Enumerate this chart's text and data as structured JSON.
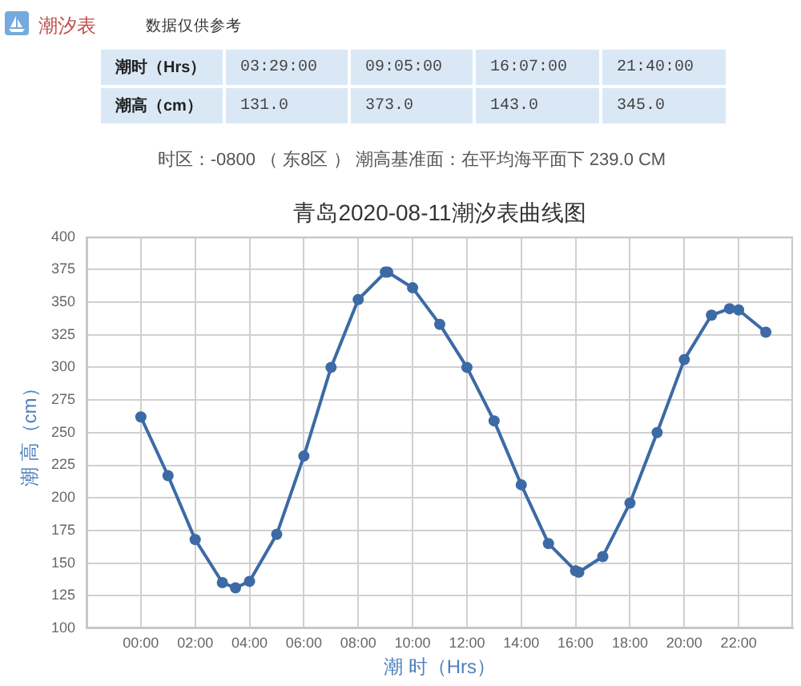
{
  "chart_data": [
    {
      "type": "other",
      "title": "潮汐表",
      "subtitle": "数据仅供参考",
      "annotations": [
        "潮时（Hrs）",
        "03:29:00",
        "09:05:00",
        "16:07:00",
        "21:40:00",
        "潮高（cm）",
        "131.0",
        "373.0",
        "143.0",
        "345.0",
        "时区：-0800 （ 东8区 ） 潮高基准面：在平均海平面下 239.0 CM"
      ]
    },
    {
      "type": "line",
      "title": "青岛2020-08-11潮汐表曲线图",
      "xlabel": "潮 时（Hrs）",
      "ylabel": "潮 高（cm）",
      "x": [
        0,
        1,
        2,
        3,
        3.483,
        4,
        5,
        6,
        7,
        8,
        9,
        9.083,
        10,
        11,
        12,
        13,
        14,
        15,
        16,
        16.117,
        17,
        18,
        19,
        20,
        21,
        21.667,
        22,
        23
      ],
      "series": [
        {
          "color": "#3c6aa5",
          "values": [
            262,
            217,
            168,
            135,
            131,
            136,
            172,
            232,
            300,
            352,
            373,
            373,
            361,
            333,
            300,
            259,
            210,
            165,
            144,
            143,
            155,
            196,
            250,
            306,
            340,
            345,
            344,
            327
          ]
        }
      ],
      "xlim": [
        -2,
        24
      ],
      "xticks": [
        {
          "value": 0,
          "label": "00:00"
        },
        {
          "value": 2,
          "label": "02:00"
        },
        {
          "value": 4,
          "label": "04:00"
        },
        {
          "value": 6,
          "label": "06:00"
        },
        {
          "value": 8,
          "label": "08:00"
        },
        {
          "value": 10,
          "label": "10:00"
        },
        {
          "value": 12,
          "label": "12:00"
        },
        {
          "value": 14,
          "label": "14:00"
        },
        {
          "value": 16,
          "label": "16:00"
        },
        {
          "value": 18,
          "label": "18:00"
        },
        {
          "value": 20,
          "label": "20:00"
        },
        {
          "value": 22,
          "label": "22:00"
        }
      ],
      "ylim": [
        100,
        400
      ],
      "yticks": [
        100,
        125,
        150,
        175,
        200,
        225,
        250,
        275,
        300,
        325,
        350,
        375,
        400
      ],
      "grid": true,
      "marker": "circle",
      "line_style": "solid"
    }
  ]
}
